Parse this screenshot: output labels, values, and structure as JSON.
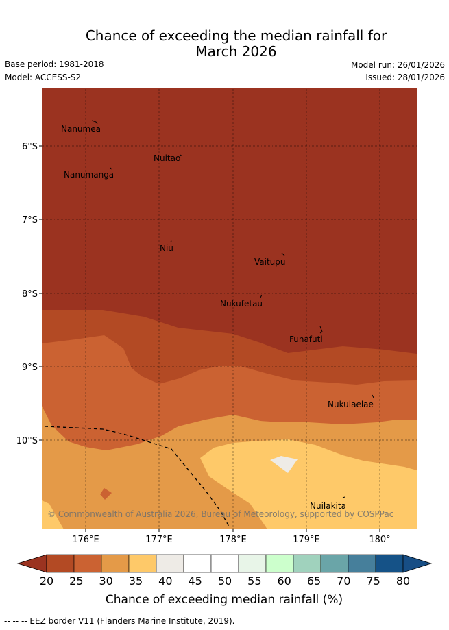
{
  "title": {
    "line1": "Chance of exceeding the median rainfall for",
    "line2": "March 2026"
  },
  "meta": {
    "base_period": "Base period: 1981-2018",
    "model": "Model: ACCESS-S2",
    "model_run": "Model run: 26/01/2026",
    "issued": "Issued: 28/01/2026"
  },
  "map": {
    "lat_ticks": [
      "6°S",
      "7°S",
      "8°S",
      "9°S",
      "10°S"
    ],
    "lon_ticks": [
      "176°E",
      "177°E",
      "178°E",
      "179°E",
      "180°"
    ],
    "places": [
      "Nanumea",
      "Nuitao",
      "Nanumanga",
      "Niu",
      "Vaitupu",
      "Nukufetau",
      "Funafuti",
      "Nukulaelae",
      "Nuilakita"
    ],
    "copyright": "© Commonwealth of Australia 2026, Bureau of Meteorology, supported by COSPPac",
    "colors": {
      "c20_25": "#9b3320",
      "c25_30": "#b34a24",
      "c30_35": "#cb6232",
      "c35_40": "#e49a48",
      "c40_45": "#fec969",
      "c45_50": "#eeebe6"
    }
  },
  "colorbar": {
    "ticks": [
      "20",
      "25",
      "30",
      "35",
      "40",
      "45",
      "50",
      "55",
      "60",
      "65",
      "70",
      "75",
      "80"
    ],
    "colors": [
      "#9b3320",
      "#b34a24",
      "#cb6232",
      "#e49a48",
      "#fec969",
      "#eeebe6",
      "#ffffff",
      "#ffffff",
      "#e8f5e8",
      "#ccffcc",
      "#a0d2bd",
      "#6aa5a8",
      "#467f9b",
      "#155287",
      "#174e85"
    ],
    "label": "Chance of exceeding median rainfall (%)"
  },
  "footer": "-- -- -- EEZ border V11 (Flanders Marine Institute, 2019)."
}
